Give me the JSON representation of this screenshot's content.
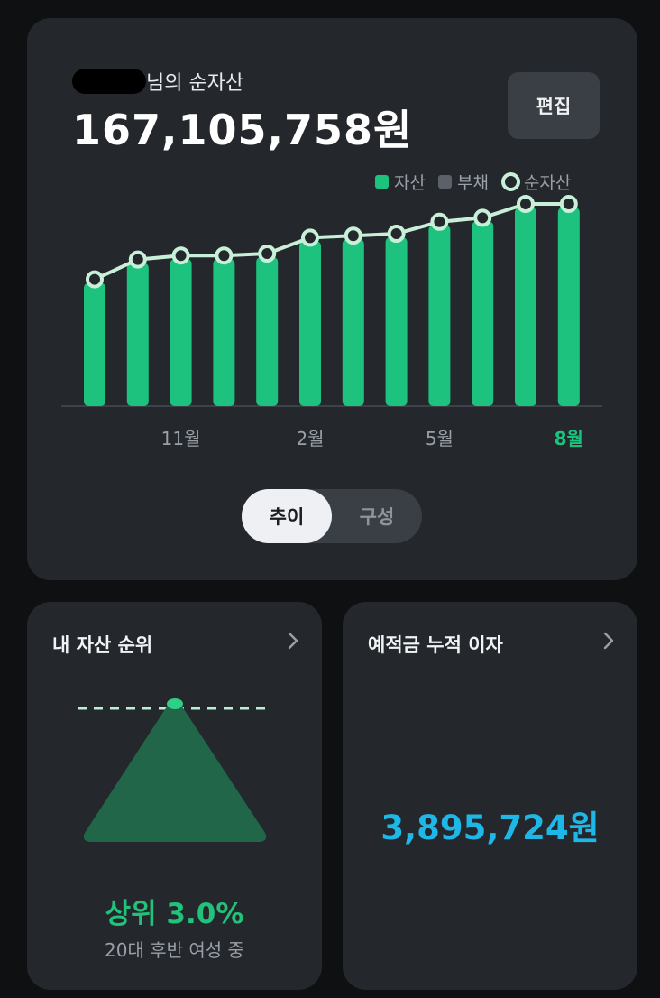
{
  "header": {
    "owner_suffix": "님의 순자산",
    "net_worth": "167,105,758원",
    "edit_label": "편집"
  },
  "legend": {
    "asset": "자산",
    "debt": "부채",
    "net": "순자산"
  },
  "colors": {
    "asset": "#1ec27f",
    "debt": "#5c6069",
    "net_line": "#c8f0d8",
    "rank_green": "#22c27a",
    "interest_blue": "#1db8e8"
  },
  "chart_data": {
    "type": "bar",
    "categories": [
      "",
      "",
      "11월",
      "",
      "",
      "2월",
      "",
      "",
      "5월",
      "",
      "",
      "8월"
    ],
    "series": [
      {
        "name": "자산",
        "values": [
          0.62,
          0.72,
          0.74,
          0.74,
          0.75,
          0.83,
          0.84,
          0.85,
          0.91,
          0.93,
          1.0,
          1.0
        ]
      },
      {
        "name": "부채",
        "values": [
          0,
          0,
          0,
          0,
          0,
          0,
          0,
          0,
          0,
          0,
          0,
          0
        ]
      },
      {
        "name": "순자산",
        "values": [
          0.62,
          0.72,
          0.74,
          0.74,
          0.75,
          0.83,
          0.84,
          0.85,
          0.91,
          0.93,
          1.0,
          1.0
        ]
      }
    ],
    "highlighted_category": "8월"
  },
  "toggle": {
    "trend": "추이",
    "composition": "구성"
  },
  "rank_card": {
    "title": "내 자산 순위",
    "percent": "상위 3.0%",
    "group": "20대 후반 여성 중"
  },
  "interest_card": {
    "title": "예적금 누적 이자",
    "value": "3,895,724원"
  }
}
